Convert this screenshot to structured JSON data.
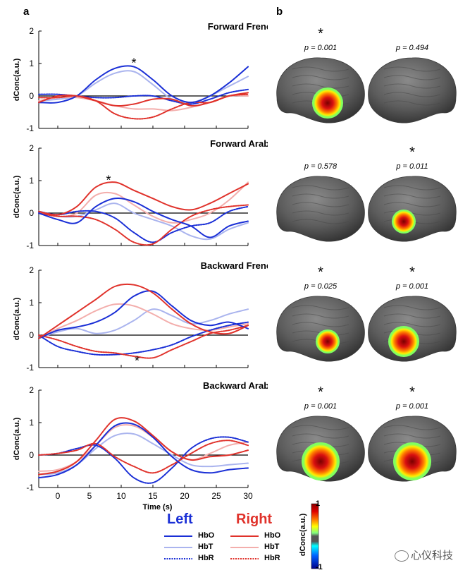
{
  "panel_labels": {
    "a": "a",
    "b": "b"
  },
  "colors": {
    "left": "#1a2fd6",
    "right": "#e0322b",
    "left_light": "#aab4ee",
    "right_light": "#f3aeac",
    "brain": "#5a5a5a"
  },
  "legend": {
    "left_title": "Left",
    "right_title": "Right",
    "items": [
      "HbO",
      "HbT",
      "HbR"
    ]
  },
  "colorbar": {
    "label": "dConc(a.u.)",
    "max_label": "1",
    "min_label": "-1"
  },
  "watermark": "心仪科技",
  "significance_mark": "*",
  "brains": [
    {
      "condition": "Forward French",
      "left": {
        "p": "p = 0.001",
        "sig": true,
        "blob": "strong"
      },
      "right": {
        "p": "p = 0.494",
        "sig": false,
        "blob": "none"
      }
    },
    {
      "condition": "Forward Arabic",
      "left": {
        "p": "p = 0.578",
        "sig": false,
        "blob": "none"
      },
      "right": {
        "p": "p = 0.011",
        "sig": true,
        "blob": "medium"
      }
    },
    {
      "condition": "Backward French",
      "left": {
        "p": "p = 0.025",
        "sig": true,
        "blob": "medium"
      },
      "right": {
        "p": "p = 0.001",
        "sig": true,
        "blob": "strong"
      }
    },
    {
      "condition": "Backward Arabic",
      "left": {
        "p": "p = 0.001",
        "sig": true,
        "blob": "large"
      },
      "right": {
        "p": "p = 0.001",
        "sig": true,
        "blob": "large"
      }
    }
  ],
  "chart_data": [
    {
      "type": "line",
      "title": "Forward French",
      "ylabel": "dConc(a.u.)",
      "xlabel": "",
      "xlim": [
        -3,
        30
      ],
      "ylim": [
        -1,
        2
      ],
      "yticks": [
        "2",
        "1",
        "0",
        "-1"
      ],
      "xticks": [],
      "x": [
        -3,
        0,
        3,
        6,
        9,
        12,
        15,
        18,
        21,
        24,
        27,
        30
      ],
      "annotation": {
        "text": "*",
        "x": 12,
        "y": 1.05
      },
      "series": [
        {
          "name": "Left HbO",
          "values": [
            -0.2,
            -0.2,
            0.0,
            0.5,
            0.85,
            0.9,
            0.5,
            0.0,
            -0.2,
            0.0,
            0.4,
            0.9
          ]
        },
        {
          "name": "Left HbT",
          "values": [
            -0.15,
            -0.1,
            0.0,
            0.4,
            0.7,
            0.75,
            0.35,
            -0.1,
            -0.2,
            0.0,
            0.3,
            0.6
          ]
        },
        {
          "name": "Left HbR",
          "values": [
            0.05,
            0.05,
            0.0,
            -0.05,
            -0.05,
            0.0,
            0.0,
            -0.15,
            -0.25,
            -0.1,
            0.1,
            0.2
          ]
        },
        {
          "name": "Right HbO",
          "values": [
            -0.2,
            0.0,
            0.0,
            -0.15,
            -0.3,
            -0.25,
            -0.1,
            -0.1,
            -0.3,
            -0.2,
            0.0,
            0.1
          ]
        },
        {
          "name": "Right HbT",
          "values": [
            -0.15,
            -0.05,
            -0.05,
            -0.15,
            -0.3,
            -0.4,
            -0.4,
            -0.45,
            -0.35,
            -0.2,
            0.0,
            0.0
          ]
        },
        {
          "name": "Right HbR",
          "values": [
            -0.05,
            -0.05,
            0.0,
            -0.15,
            -0.55,
            -0.7,
            -0.65,
            -0.4,
            -0.2,
            -0.2,
            0.0,
            0.05
          ]
        }
      ]
    },
    {
      "type": "line",
      "title": "Forward Arabic",
      "ylabel": "dConc(a.u.)",
      "xlabel": "",
      "xlim": [
        -3,
        30
      ],
      "ylim": [
        -1,
        2
      ],
      "yticks": [
        "2",
        "1",
        "0",
        "-1"
      ],
      "xticks": [],
      "x": [
        -3,
        0,
        3,
        6,
        9,
        12,
        15,
        18,
        21,
        24,
        27,
        30
      ],
      "annotation": {
        "text": "*",
        "x": 8,
        "y": 1.05
      },
      "series": [
        {
          "name": "Left HbO",
          "values": [
            0.0,
            -0.2,
            -0.3,
            0.2,
            0.45,
            0.35,
            0.05,
            -0.2,
            -0.4,
            -0.75,
            -0.4,
            -0.25
          ]
        },
        {
          "name": "Left HbT",
          "values": [
            0.0,
            -0.1,
            -0.1,
            0.1,
            0.3,
            0.0,
            -0.2,
            -0.4,
            -0.7,
            -0.8,
            -0.5,
            -0.3
          ]
        },
        {
          "name": "Left HbR",
          "values": [
            0.05,
            -0.05,
            0.05,
            0.05,
            -0.15,
            -0.6,
            -0.9,
            -0.6,
            -0.4,
            -0.3,
            0.05,
            0.2
          ]
        },
        {
          "name": "Right HbO",
          "values": [
            0.05,
            -0.05,
            0.2,
            0.8,
            0.95,
            0.7,
            0.45,
            0.2,
            0.1,
            0.3,
            0.6,
            0.9
          ]
        },
        {
          "name": "Right HbT",
          "values": [
            0.05,
            -0.1,
            0.0,
            0.55,
            0.6,
            0.25,
            -0.1,
            -0.3,
            -0.2,
            0.0,
            0.4,
            0.95
          ]
        },
        {
          "name": "Right HbR",
          "values": [
            0.0,
            -0.1,
            -0.1,
            -0.2,
            -0.5,
            -0.9,
            -0.95,
            -0.5,
            -0.1,
            0.1,
            0.2,
            0.25
          ]
        }
      ]
    },
    {
      "type": "line",
      "title": "Backward French",
      "ylabel": "dConc(a.u.)",
      "xlabel": "",
      "xlim": [
        -3,
        30
      ],
      "ylim": [
        -1,
        2
      ],
      "yticks": [
        "2",
        "1",
        "0",
        "-1"
      ],
      "xticks": [],
      "x": [
        -3,
        0,
        3,
        6,
        9,
        12,
        15,
        18,
        21,
        24,
        27,
        30
      ],
      "annotation": {
        "text": "*",
        "x": 12.5,
        "y": -0.75
      },
      "series": [
        {
          "name": "Left HbO",
          "values": [
            -0.1,
            0.15,
            0.25,
            0.4,
            0.7,
            1.2,
            1.35,
            0.9,
            0.45,
            0.3,
            0.4,
            0.2
          ]
        },
        {
          "name": "Left HbT",
          "values": [
            -0.1,
            0.1,
            0.2,
            0.05,
            0.15,
            0.45,
            0.8,
            0.6,
            0.35,
            0.45,
            0.65,
            0.8
          ]
        },
        {
          "name": "Left HbR",
          "values": [
            0.0,
            -0.35,
            -0.5,
            -0.6,
            -0.6,
            -0.55,
            -0.45,
            -0.3,
            -0.05,
            0.15,
            0.3,
            0.4
          ]
        },
        {
          "name": "Right HbO",
          "values": [
            -0.1,
            0.3,
            0.7,
            1.1,
            1.5,
            1.55,
            1.3,
            0.8,
            0.35,
            0.1,
            0.05,
            0.3
          ]
        },
        {
          "name": "Right HbT",
          "values": [
            -0.1,
            0.2,
            0.45,
            0.75,
            0.95,
            0.9,
            0.65,
            0.35,
            0.2,
            0.15,
            0.25,
            0.35
          ]
        },
        {
          "name": "Right HbR",
          "values": [
            0.0,
            -0.15,
            -0.35,
            -0.5,
            -0.55,
            -0.65,
            -0.7,
            -0.45,
            -0.2,
            0.05,
            0.15,
            0.3
          ]
        }
      ]
    },
    {
      "type": "line",
      "title": "Backward Arabic",
      "ylabel": "dConc(a.u.)",
      "xlabel": "Time (s)",
      "xlim": [
        -3,
        30
      ],
      "ylim": [
        -1,
        2
      ],
      "yticks": [
        "2",
        "1",
        "0",
        "-1"
      ],
      "xticks": [
        "0",
        "5",
        "10",
        "15",
        "20",
        "25",
        "30"
      ],
      "x": [
        -3,
        0,
        3,
        6,
        9,
        12,
        15,
        18,
        21,
        24,
        27,
        30
      ],
      "annotation": null,
      "series": [
        {
          "name": "Left HbO",
          "values": [
            -0.7,
            -0.6,
            -0.3,
            0.3,
            0.9,
            0.95,
            0.55,
            -0.05,
            -0.45,
            -0.55,
            -0.45,
            -0.4
          ]
        },
        {
          "name": "Left HbT",
          "values": [
            -0.6,
            -0.55,
            -0.3,
            0.2,
            0.6,
            0.65,
            0.35,
            0.0,
            -0.3,
            -0.35,
            -0.3,
            -0.25
          ]
        },
        {
          "name": "Left HbR",
          "values": [
            0.0,
            0.05,
            0.2,
            0.3,
            -0.1,
            -0.7,
            -0.85,
            -0.4,
            0.2,
            0.5,
            0.55,
            0.4
          ]
        },
        {
          "name": "Right HbO",
          "values": [
            -0.6,
            -0.5,
            -0.2,
            0.45,
            1.1,
            1.05,
            0.6,
            0.1,
            -0.15,
            -0.05,
            0.0,
            0.15
          ]
        },
        {
          "name": "Right HbT",
          "values": [
            -0.5,
            -0.45,
            -0.2,
            0.3,
            0.85,
            0.9,
            0.55,
            0.1,
            -0.15,
            0.05,
            0.3,
            0.4
          ]
        },
        {
          "name": "Right HbR",
          "values": [
            0.0,
            0.05,
            0.15,
            0.35,
            -0.05,
            -0.35,
            -0.55,
            -0.3,
            0.05,
            0.35,
            0.45,
            0.3
          ]
        }
      ]
    }
  ]
}
